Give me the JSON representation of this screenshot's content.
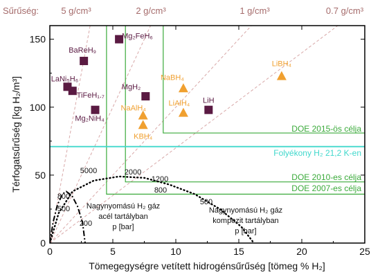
{
  "chart_data": {
    "type": "scatter",
    "xlabel": "Tömegegységre vetített hidrogénsűrűség [tömeg % H₂]",
    "ylabel": "Térfogatsűrűség [kg H₂/m³]",
    "xlim": [
      0,
      25
    ],
    "ylim": [
      0,
      160
    ],
    "x_ticks": [
      0,
      5,
      10,
      15,
      20,
      25
    ],
    "y_ticks": [
      0,
      50,
      100,
      150
    ],
    "density_header": "Sűrűség:",
    "density_lines": [
      {
        "label": "5 g/cm³",
        "density": 5
      },
      {
        "label": "2 g/cm³",
        "density": 2
      },
      {
        "label": "1 g/cm³",
        "density": 1
      },
      {
        "label": "0.7 g/cm³",
        "density": 0.7
      }
    ],
    "colors": {
      "hydride": "#5a1a42",
      "complex_hydride": "#f0a030",
      "doe": "#3aaa3a",
      "liquid": "#40d8cc",
      "density_line": "#d8a8a8",
      "density_text": "#a56b6b",
      "axis": "#000000"
    },
    "series": [
      {
        "name": "hydrides",
        "marker": "square",
        "points": [
          {
            "label": "Mg₂FeH₆",
            "x": 5.5,
            "y": 150
          },
          {
            "label": "BaReH₉",
            "x": 2.7,
            "y": 134
          },
          {
            "label": "LaNi₅H₆",
            "x": 1.4,
            "y": 115
          },
          {
            "label": "TiFeH₁.₇",
            "x": 1.8,
            "y": 112
          },
          {
            "label": "Mg₂NiH₄",
            "x": 3.6,
            "y": 98
          },
          {
            "label": "MgH₂",
            "x": 7.6,
            "y": 108
          },
          {
            "label": "LiH",
            "x": 12.6,
            "y": 98
          }
        ]
      },
      {
        "name": "complex hydrides",
        "marker": "triangle",
        "points": [
          {
            "label": "NaBH₄",
            "x": 10.6,
            "y": 114
          },
          {
            "label": "LiBH₄",
            "x": 18.4,
            "y": 123
          },
          {
            "label": "NaAlH₄",
            "x": 7.4,
            "y": 94
          },
          {
            "label": "KBH₄",
            "x": 7.4,
            "y": 87
          },
          {
            "label": "LiAlH₄",
            "x": 10.6,
            "y": 96
          }
        ]
      }
    ],
    "targets": [
      {
        "label": "DOE 2015-ös célja",
        "x": 9,
        "y": 81
      },
      {
        "label": "DOE 2010-es célja",
        "x": 6,
        "y": 45
      },
      {
        "label": "DOE 2007-es célja",
        "x": 4.5,
        "y": 36
      }
    ],
    "liquid": {
      "label": "Folyékony H₂ 21,2 K-en",
      "y": 71
    },
    "steel_tank": {
      "label_lines": [
        "Nagynyomású H₂ gáz",
        "acél tartályban",
        "p [bar]"
      ],
      "pressure_labels": [
        "800",
        "500",
        "200"
      ]
    },
    "composite_tank": {
      "label_lines": [
        "Nagynyomású H₂ gáz",
        "kompozit tartályban",
        "p [bar]"
      ],
      "pressure_labels": [
        "5000",
        "2000",
        "1200",
        "800",
        "500"
      ]
    }
  }
}
